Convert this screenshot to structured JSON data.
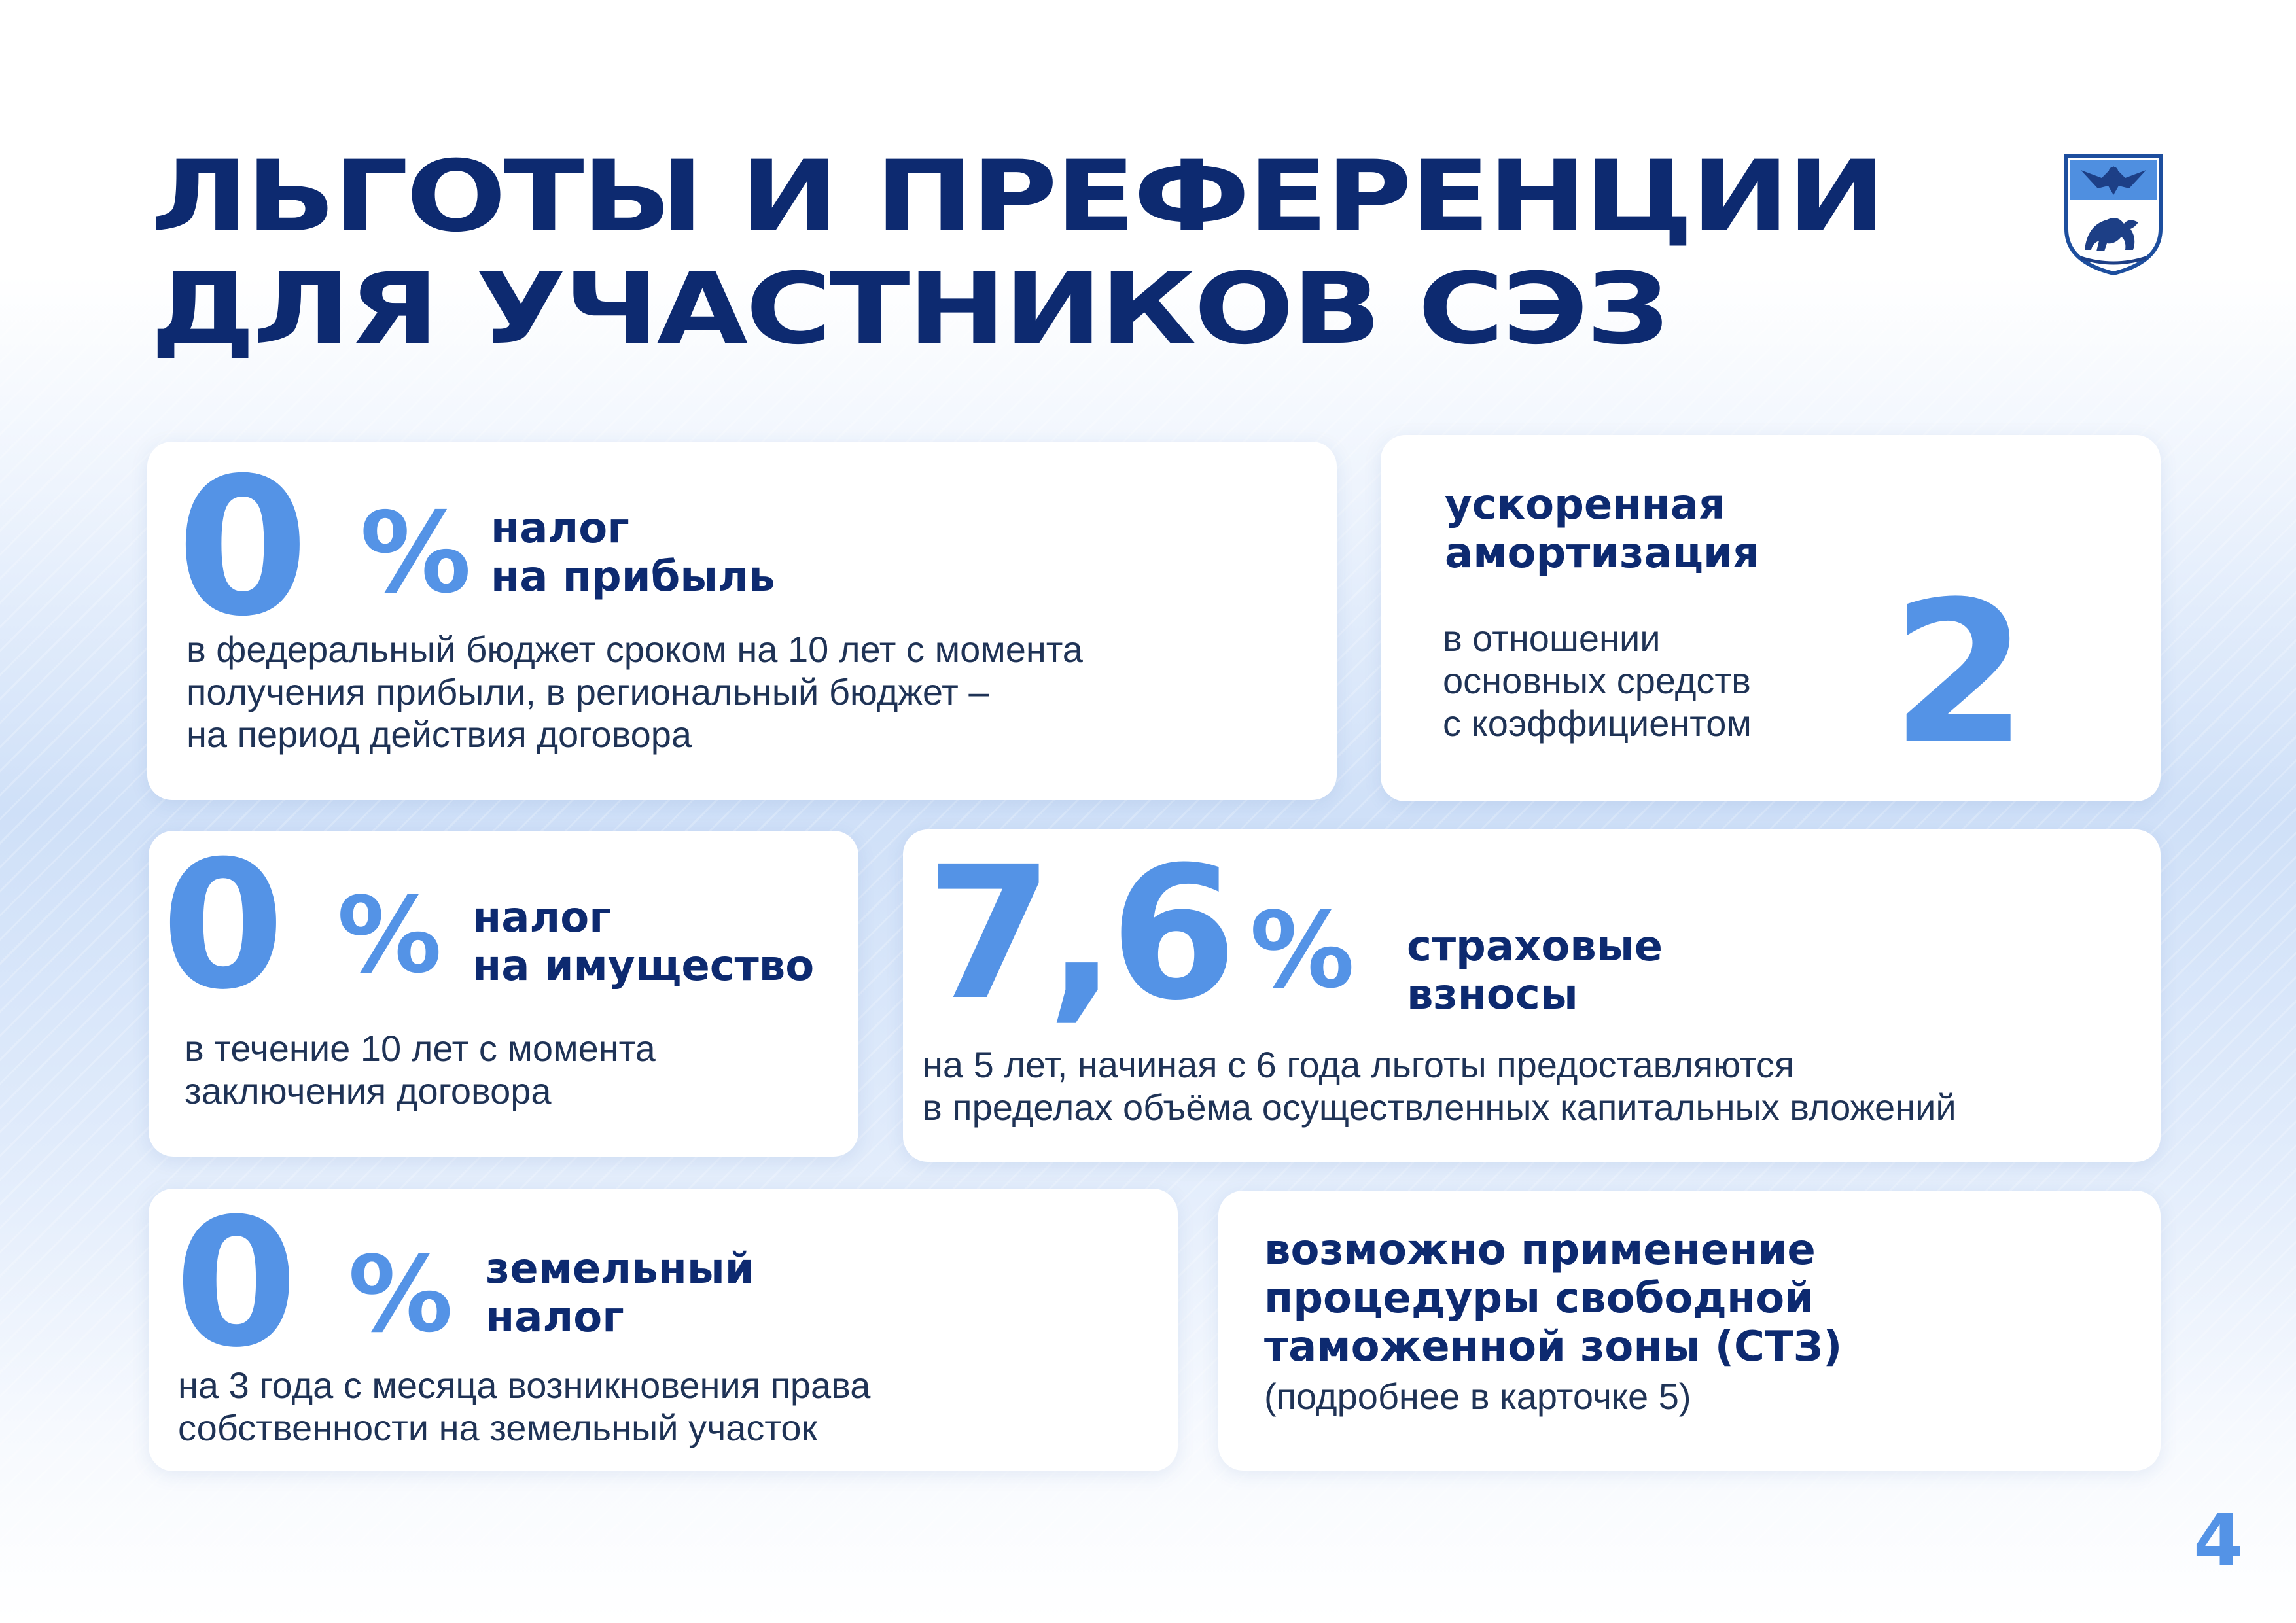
{
  "title": {
    "line1": "Льготы и преференции",
    "line2": "для участников СЭЗ"
  },
  "colors": {
    "dark_blue": "#0d2a70",
    "accent_blue": "#5493e6",
    "text": "#1f3356"
  },
  "cards": {
    "profit_tax": {
      "value": "0",
      "percent": "%",
      "heading": [
        "налог",
        "на прибыль"
      ],
      "description": [
        "в федеральный бюджет сроком на 10 лет с момента",
        "получения прибыли, в региональный бюджет –",
        "на период действия договора"
      ]
    },
    "amortization": {
      "heading": [
        "ускоренная",
        "амортизация"
      ],
      "description": [
        "в отношении",
        "основных средств",
        "с коэффициентом"
      ],
      "value": "2"
    },
    "property_tax": {
      "value": "0",
      "percent": "%",
      "heading": [
        "налог",
        "на имущество"
      ],
      "description": [
        "в течение 10 лет с момента",
        "заключения договора"
      ]
    },
    "insurance": {
      "value": "7,6",
      "percent": "%",
      "heading": [
        "страховые",
        "взносы"
      ],
      "description": [
        "на 5 лет, начиная с 6 года льготы предоставляются",
        "в пределах объёма осуществленных капитальных вложений"
      ]
    },
    "land_tax": {
      "value": "0",
      "percent": "%",
      "heading": [
        "земельный",
        "налог"
      ],
      "description": [
        "на 3 года с месяца возникновения права",
        "собственности на земельный участок"
      ]
    },
    "customs": {
      "heading": [
        "возможно применение",
        "процедуры свободной",
        "таможенной зоны (СТЗ)"
      ],
      "note": "(подробнее в карточке 5)"
    }
  },
  "page_number": "4"
}
